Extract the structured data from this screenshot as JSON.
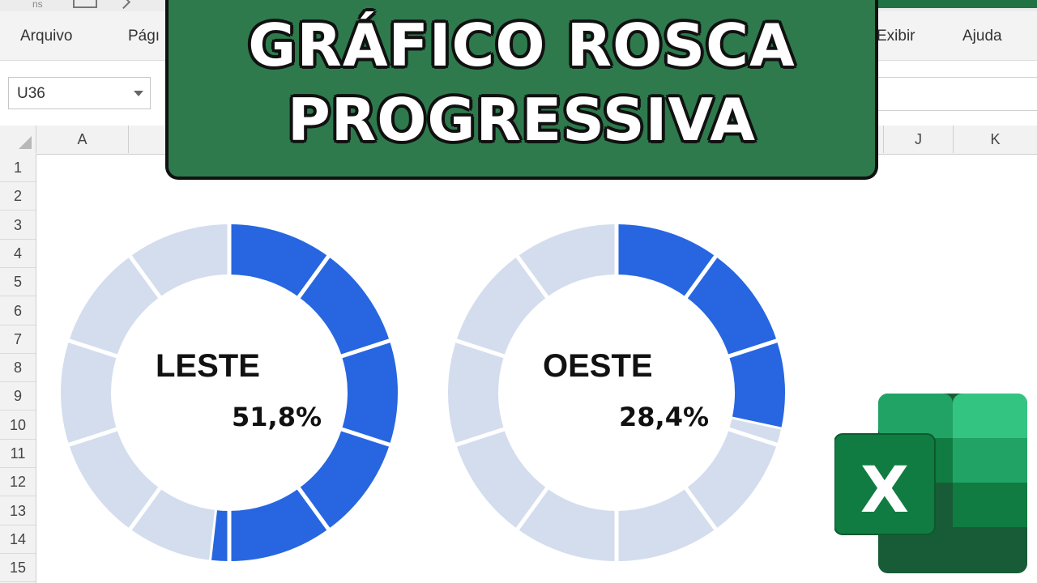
{
  "app": {
    "quick_access_fragment": "ns"
  },
  "ribbon": {
    "menu": [
      {
        "label": "Arquivo"
      },
      {
        "label": "Págı"
      },
      {
        "label": "Exibir"
      },
      {
        "label": "Ajuda"
      }
    ]
  },
  "formula_bar": {
    "name_box": "U36"
  },
  "grid": {
    "columns_left": [
      "A"
    ],
    "columns_right": [
      "J",
      "K"
    ],
    "rows": [
      "1",
      "2",
      "3",
      "4",
      "5",
      "6",
      "7",
      "8",
      "9",
      "10",
      "11",
      "12",
      "13",
      "14",
      "15"
    ]
  },
  "banner": {
    "line1": "GRÁFICO ROSCA",
    "line2": "PROGRESSIVA"
  },
  "donuts": [
    {
      "name": "LESTE",
      "percent_label": "51,8%",
      "value": 0.518,
      "segments": 10
    },
    {
      "name": "OESTE",
      "percent_label": "28,4%",
      "value": 0.284,
      "segments": 10
    }
  ],
  "colors": {
    "filled": "#2766e0",
    "empty": "#d3ddee",
    "banner": "#2e7a4d",
    "excel_dark": "#185c37",
    "excel_mid": "#21a366",
    "excel_light": "#33c481",
    "excel_tile": "#107c41"
  },
  "logo": {
    "letter": "X",
    "icon": "excel-logo-icon"
  }
}
